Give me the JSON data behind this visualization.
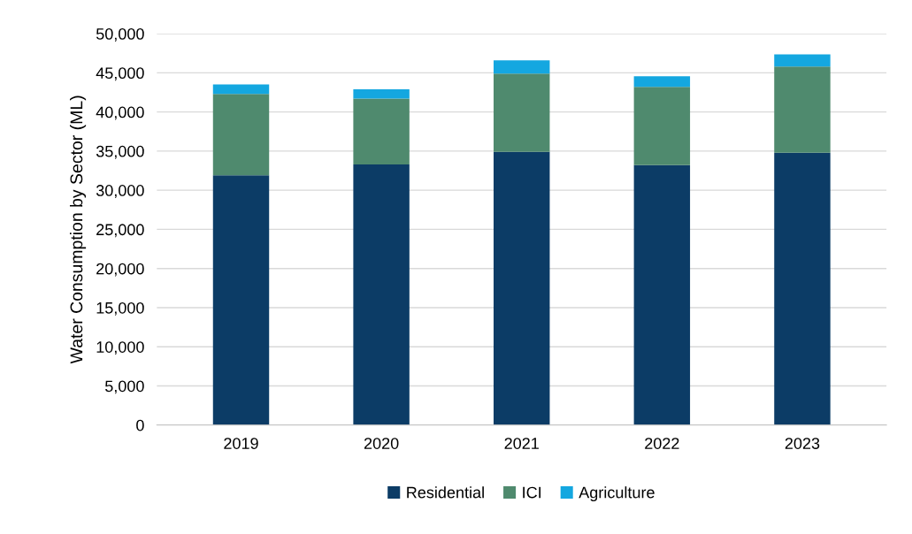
{
  "chart_data": {
    "type": "bar",
    "stacked": true,
    "ylabel": "Water Consumption by Sector (ML)",
    "categories": [
      "2019",
      "2020",
      "2021",
      "2022",
      "2023"
    ],
    "series": [
      {
        "name": "Residential",
        "color": "#0c3c66",
        "values": [
          31900,
          33300,
          34900,
          33200,
          34800
        ]
      },
      {
        "name": "ICI",
        "color": "#4f8a6e",
        "values": [
          10400,
          8400,
          10000,
          10000,
          11000
        ]
      },
      {
        "name": "Agriculture",
        "color": "#14a7e0",
        "values": [
          1200,
          1200,
          1700,
          1350,
          1550
        ]
      }
    ],
    "ylim": [
      0,
      50000
    ],
    "yticks": [
      {
        "value": 0,
        "label": "0"
      },
      {
        "value": 5000,
        "label": "5,000"
      },
      {
        "value": 10000,
        "label": "10,000"
      },
      {
        "value": 15000,
        "label": "15,000"
      },
      {
        "value": 20000,
        "label": "20,000"
      },
      {
        "value": 25000,
        "label": "25,000"
      },
      {
        "value": 30000,
        "label": "30,000"
      },
      {
        "value": 35000,
        "label": "35,000"
      },
      {
        "value": 40000,
        "label": "40,000"
      },
      {
        "value": 45000,
        "label": "45,000"
      },
      {
        "value": 50000,
        "label": "50,000"
      }
    ],
    "grid": "y",
    "legend": "bottom"
  }
}
